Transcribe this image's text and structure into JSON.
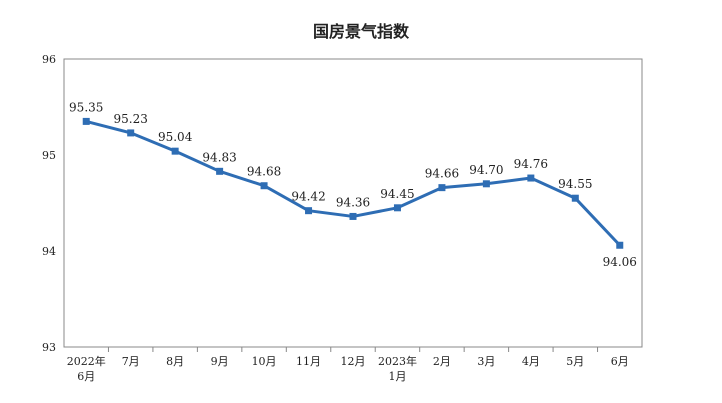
{
  "chart_data": {
    "type": "line",
    "title": "国房景气指数",
    "xlabel": "",
    "ylabel": "",
    "ylim": [
      93,
      96
    ],
    "yticks": [
      "96",
      "95",
      "94",
      "93"
    ],
    "grid": false,
    "categories": [
      [
        "2022年",
        "6月"
      ],
      [
        "7月"
      ],
      [
        "8月"
      ],
      [
        "9月"
      ],
      [
        "10月"
      ],
      [
        "11月"
      ],
      [
        "12月"
      ],
      [
        "2023年",
        "1月"
      ],
      [
        "2月"
      ],
      [
        "3月"
      ],
      [
        "4月"
      ],
      [
        "5月"
      ],
      [
        "6月"
      ]
    ],
    "series": [
      {
        "values": [
          95.35,
          95.23,
          95.04,
          94.83,
          94.68,
          94.42,
          94.36,
          94.45,
          94.66,
          94.7,
          94.76,
          94.55,
          94.06
        ],
        "labels": [
          "95.35",
          "95.23",
          "95.04",
          "94.83",
          "94.68",
          "94.42",
          "94.36",
          "94.45",
          "94.66",
          "94.70",
          "94.76",
          "94.55",
          "94.06"
        ],
        "color": "#2e6db4"
      }
    ]
  }
}
